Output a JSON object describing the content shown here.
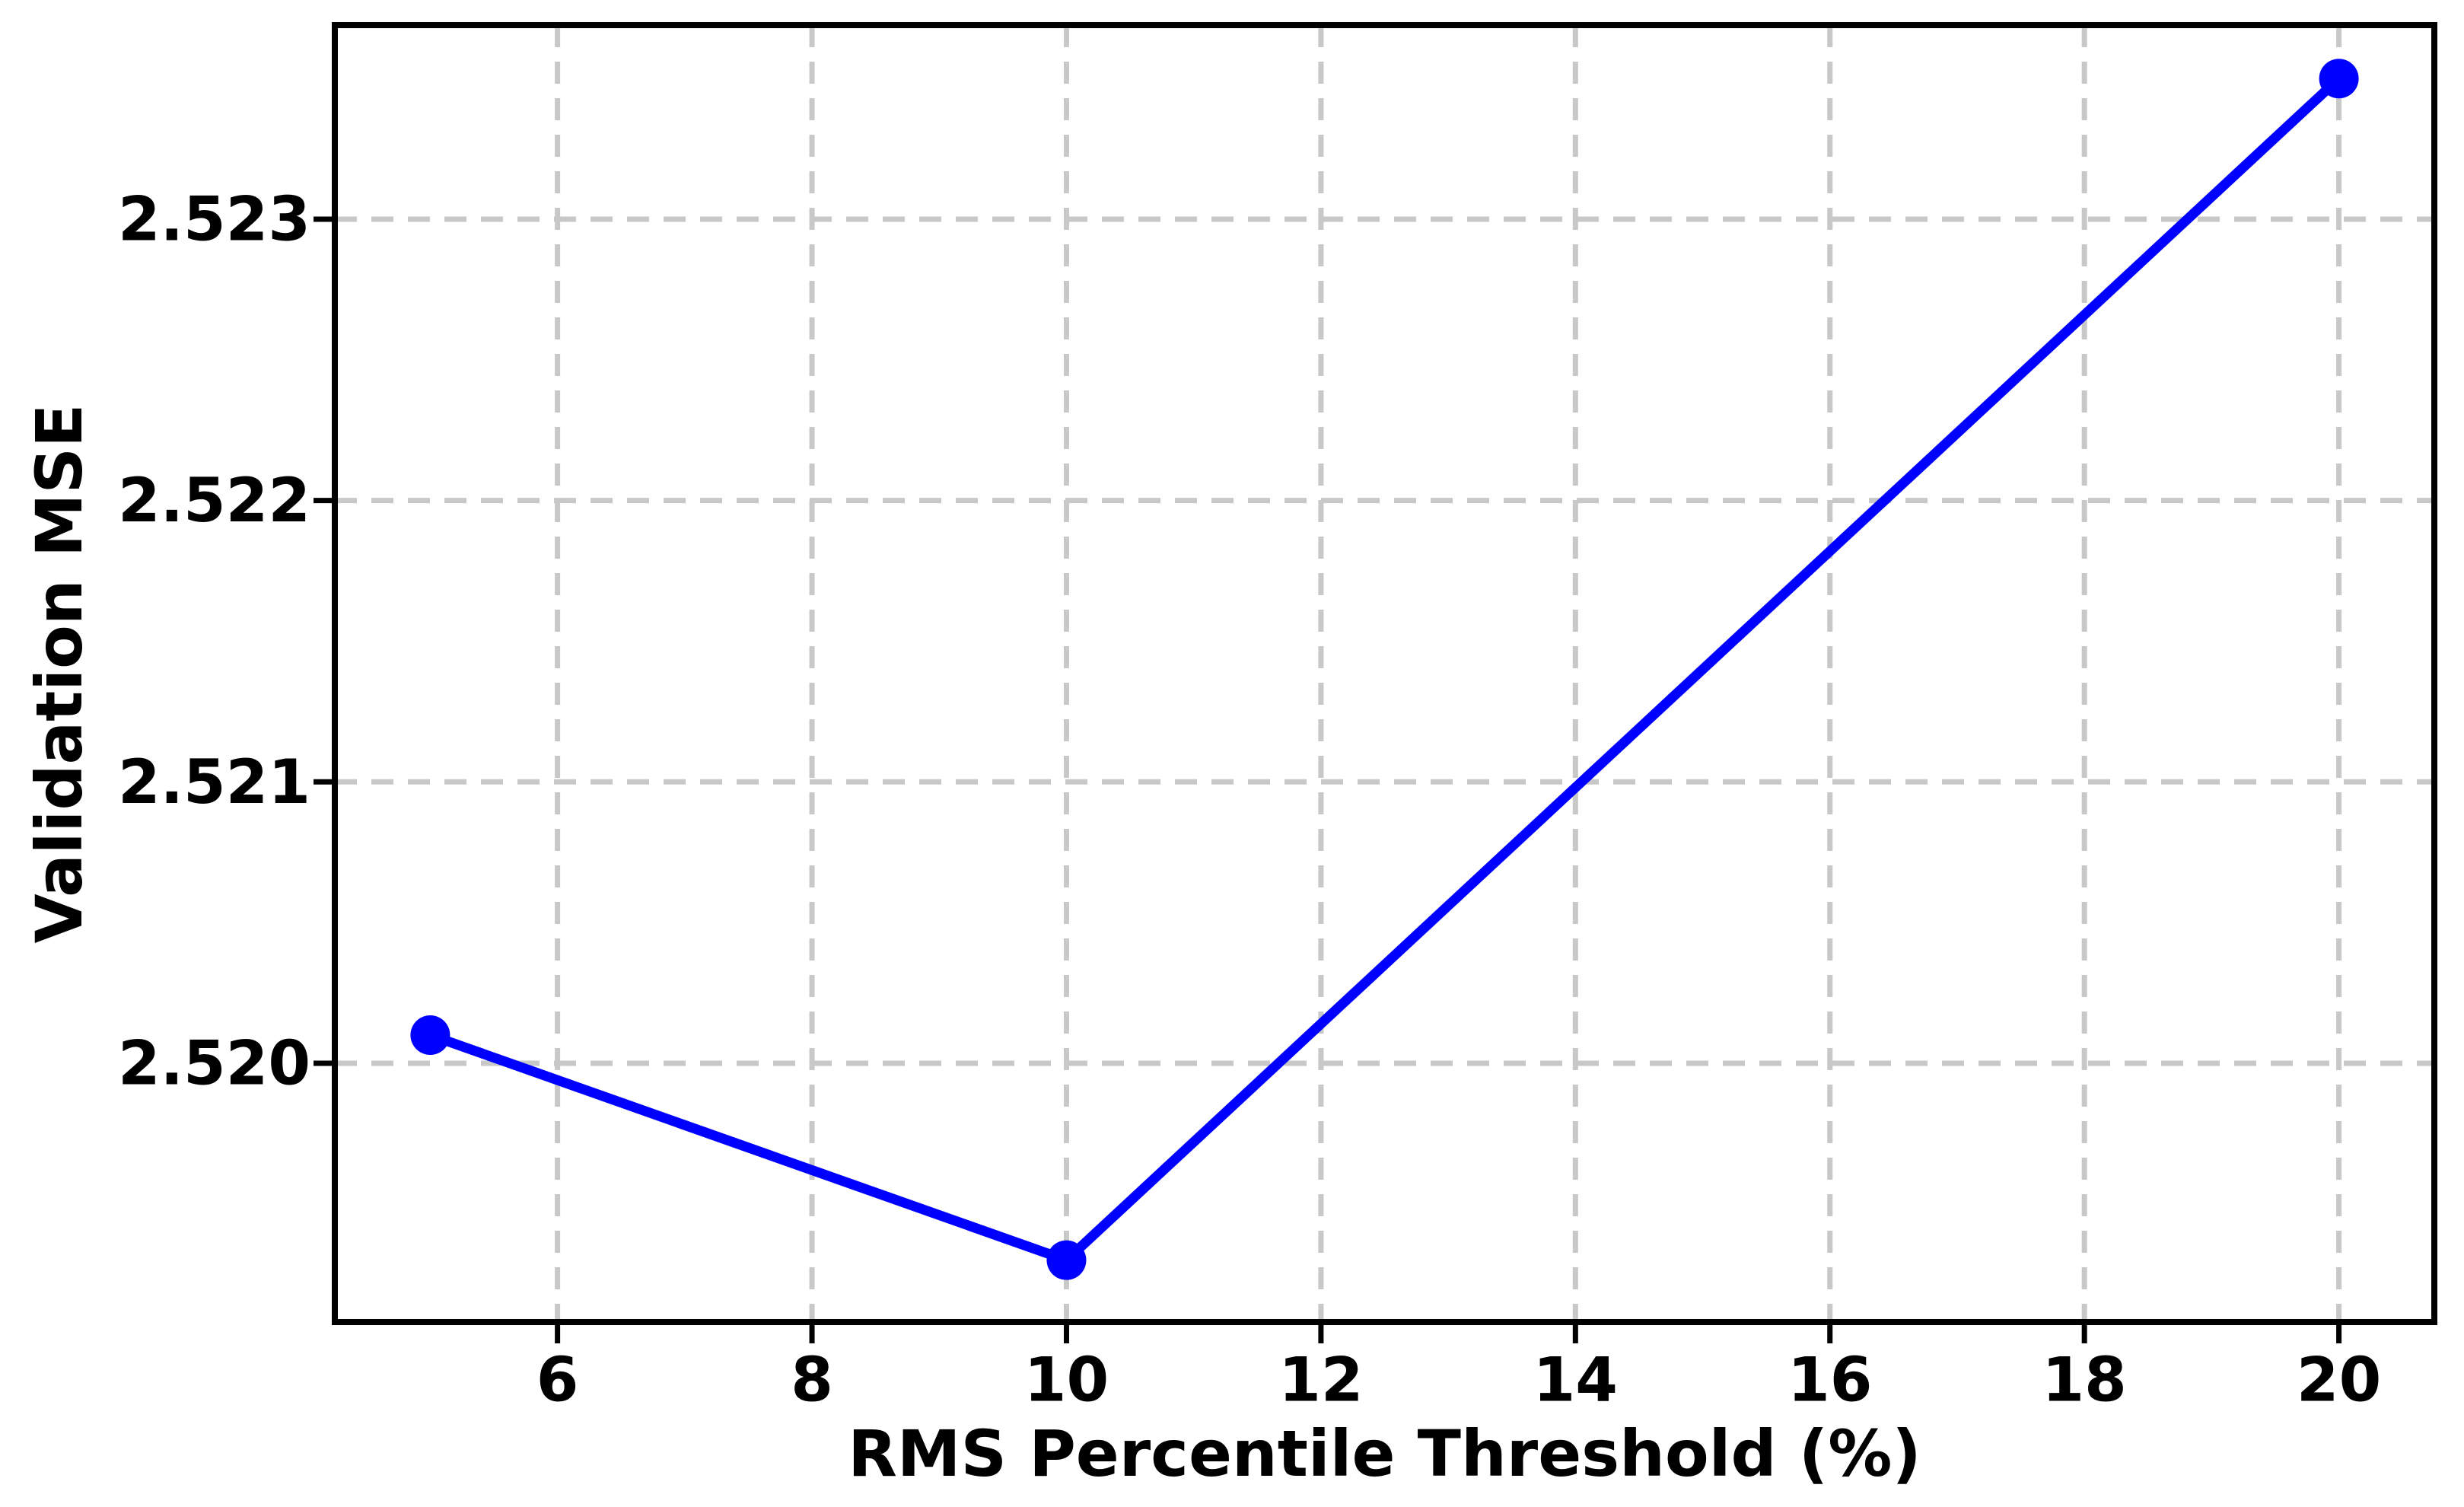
{
  "chart_data": {
    "type": "line",
    "title": "",
    "xlabel": "RMS Percentile Threshold (%)",
    "ylabel": "Validation MSE",
    "x": [
      5,
      10,
      20
    ],
    "y": [
      2.5201,
      2.5193,
      2.5235
    ],
    "series": [
      {
        "name": "Validation MSE",
        "x": [
          5,
          10,
          20
        ],
        "values": [
          2.5201,
          2.5193,
          2.5235
        ]
      }
    ],
    "xlim": [
      4.25,
      20.75
    ],
    "ylim": [
      2.51908,
      2.52369
    ],
    "xticks": [
      6,
      8,
      10,
      12,
      14,
      16,
      18,
      20
    ],
    "xtick_labels": [
      "6",
      "8",
      "10",
      "12",
      "14",
      "16",
      "18",
      "20"
    ],
    "yticks": [
      2.52,
      2.521,
      2.522,
      2.523
    ],
    "ytick_labels": [
      "2.520",
      "2.521",
      "2.522",
      "2.523"
    ],
    "grid": true,
    "grid_style": "dashed",
    "legend_position": "none",
    "marker": "circle",
    "colors": {
      "line_color": "#0000ff",
      "marker_color": "#0000ff",
      "grid_color": "#c8c8c8",
      "axis_color": "#000000",
      "text_color": "#000000",
      "background": "#ffffff"
    }
  }
}
